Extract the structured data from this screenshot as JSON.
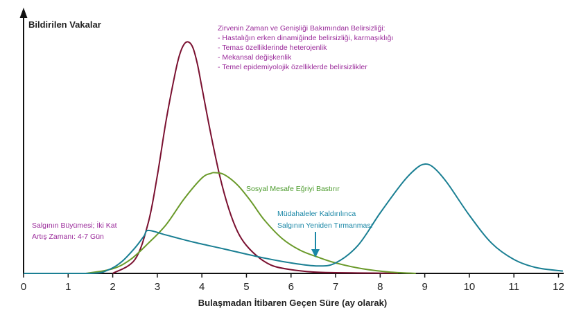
{
  "chart_data": {
    "type": "line",
    "xlabel": "Bulaşmadan İtibaren Geçen Süre (ay olarak)",
    "ylabel": "Bildirilen Vakalar",
    "xlim": [
      0,
      12.1
    ],
    "ylim": [
      0,
      100
    ],
    "x_ticks": [
      "0",
      "1",
      "2",
      "3",
      "4",
      "5",
      "6",
      "7",
      "8",
      "9",
      "10",
      "11",
      "12"
    ],
    "grid": false,
    "series": [
      {
        "color": "#7a1030",
        "x": [
          2.0,
          2.5,
          2.8,
          3.0,
          3.2,
          3.4,
          3.5,
          3.6,
          3.7,
          3.8,
          3.9,
          4.0,
          4.2,
          4.4,
          4.6,
          4.8,
          5.0,
          5.3,
          5.6,
          6.0,
          6.5,
          7.0,
          8.0,
          8.4
        ],
        "y": [
          0,
          6,
          22,
          42,
          66,
          86,
          94,
          98.5,
          99.5,
          97,
          90,
          80,
          60,
          42,
          28,
          18,
          12,
          6.5,
          3.2,
          1.6,
          0.6,
          0.3,
          0.1,
          0.1
        ]
      },
      {
        "color": "#6a9a2a",
        "x": [
          1.4,
          2.0,
          2.4,
          2.8,
          3.2,
          3.6,
          4.0,
          4.2,
          4.3,
          4.5,
          4.8,
          5.1,
          5.4,
          5.8,
          6.2,
          6.6,
          7.0,
          7.6,
          8.2,
          8.8
        ],
        "y": [
          0,
          2,
          6,
          13,
          21,
          32,
          41,
          43,
          43.3,
          42.5,
          38,
          31,
          23,
          15,
          10,
          7,
          4.5,
          2,
          0.6,
          0
        ]
      },
      {
        "color": "#1a7f93",
        "x": [
          0,
          1.5,
          1.9,
          2.2,
          2.5,
          2.7,
          2.8,
          3.2,
          3.8,
          4.5,
          5.3,
          6.0,
          6.6,
          7.0,
          7.5,
          8.0,
          8.5,
          8.8,
          9.0,
          9.2,
          9.5,
          10.0,
          10.5,
          11.0,
          11.5,
          12.1
        ],
        "y": [
          0,
          0,
          1.5,
          5,
          11,
          16,
          18.5,
          16.5,
          13.5,
          10.5,
          7,
          4.5,
          3.2,
          4.5,
          12,
          26,
          39,
          45,
          47,
          45.5,
          39,
          25,
          13,
          6,
          2.5,
          1
        ]
      }
    ],
    "annotations": {
      "peak_title": "Zirvenin Zaman ve Genişliği Bakımından Belirsizliği:",
      "peak_items": [
        "- Hastalığın erken dinamiğinde belirsizliği, karmaşıklığı",
        "- Temas özelliklerinde heterojenlik",
        "- Mekansal değişkenlik",
        "- Temel epidemiyolojik özelliklerde belirsizlikler"
      ],
      "flatten": "Sosyal Mesafe Eğriyi Bastırır",
      "rebound_line1": "Müdahaleler Kaldırılınca",
      "rebound_line2": "Salgının Yeniden Tırmanması",
      "growth_line1": "Salgının Büyümesi; İki Kat",
      "growth_line2": "Artış Zamanı: 4-7 Gün"
    },
    "colors": {
      "axis": "#111111",
      "annotation_purple": "#9a2a9a",
      "annotation_green": "#4a9a2a",
      "annotation_teal": "#1a87a6"
    }
  }
}
